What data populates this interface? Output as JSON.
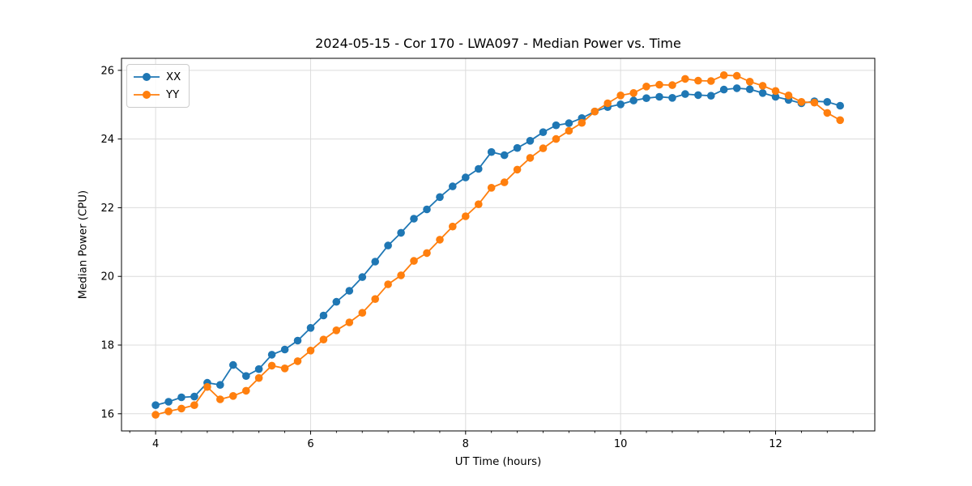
{
  "figure": {
    "title": "2024-05-15 - Cor 170 - LWA097 - Median Power vs. Time",
    "xlabel": "UT Time (hours)",
    "ylabel": "Median Power (CPU)"
  },
  "legend": {
    "items": [
      {
        "label": "XX",
        "color": "#1f77b4"
      },
      {
        "label": "YY",
        "color": "#ff7f0e"
      }
    ]
  },
  "chart_data": {
    "type": "line",
    "title": "2024-05-15 - Cor 170 - LWA097 - Median Power vs. Time",
    "xlabel": "UT Time (hours)",
    "ylabel": "Median Power (CPU)",
    "xlim": [
      3.56,
      13.28
    ],
    "ylim": [
      15.5,
      26.35
    ],
    "x_major_ticks": [
      4,
      6,
      8,
      10,
      12
    ],
    "x_minor_tick_step": 0.33333,
    "y_major_ticks": [
      16,
      18,
      20,
      22,
      24,
      26
    ],
    "grid": true,
    "grid_color": "#dcdcdc",
    "legend_position": "upper-left",
    "x": [
      4.0,
      4.167,
      4.333,
      4.5,
      4.667,
      4.833,
      5.0,
      5.167,
      5.333,
      5.5,
      5.667,
      5.833,
      6.0,
      6.167,
      6.333,
      6.5,
      6.667,
      6.833,
      7.0,
      7.167,
      7.333,
      7.5,
      7.667,
      7.833,
      8.0,
      8.167,
      8.333,
      8.5,
      8.667,
      8.833,
      9.0,
      9.167,
      9.333,
      9.5,
      9.667,
      9.833,
      10.0,
      10.167,
      10.333,
      10.5,
      10.667,
      10.833,
      11.0,
      11.167,
      11.333,
      11.5,
      11.667,
      11.833,
      12.0,
      12.167,
      12.333,
      12.5,
      12.667,
      12.833
    ],
    "series": [
      {
        "name": "XX",
        "color": "#1f77b4",
        "marker": "circle",
        "values": [
          16.25,
          16.35,
          16.48,
          16.5,
          16.9,
          16.84,
          17.42,
          17.1,
          17.3,
          17.72,
          17.87,
          18.13,
          18.5,
          18.86,
          19.26,
          19.58,
          19.98,
          20.43,
          20.9,
          21.27,
          21.68,
          21.95,
          22.31,
          22.62,
          22.88,
          23.13,
          23.62,
          23.53,
          23.74,
          23.95,
          24.2,
          24.4,
          24.46,
          24.61,
          24.8,
          24.93,
          25.01,
          25.12,
          25.19,
          25.23,
          25.2,
          25.31,
          25.28,
          25.26,
          25.44,
          25.48,
          25.45,
          25.34,
          25.23,
          25.14,
          25.04,
          25.1,
          25.08,
          24.97
        ]
      },
      {
        "name": "YY",
        "color": "#ff7f0e",
        "marker": "circle",
        "values": [
          15.97,
          16.07,
          16.15,
          16.25,
          16.78,
          16.42,
          16.52,
          16.67,
          17.04,
          17.4,
          17.32,
          17.53,
          17.84,
          18.16,
          18.43,
          18.66,
          18.94,
          19.34,
          19.77,
          20.03,
          20.45,
          20.68,
          21.07,
          21.45,
          21.75,
          22.1,
          22.58,
          22.74,
          23.11,
          23.45,
          23.73,
          24.0,
          24.24,
          24.47,
          24.8,
          25.04,
          25.27,
          25.34,
          25.53,
          25.58,
          25.57,
          25.75,
          25.7,
          25.69,
          25.86,
          25.84,
          25.67,
          25.55,
          25.4,
          25.27,
          25.08,
          25.06,
          24.76,
          24.55
        ]
      }
    ]
  }
}
